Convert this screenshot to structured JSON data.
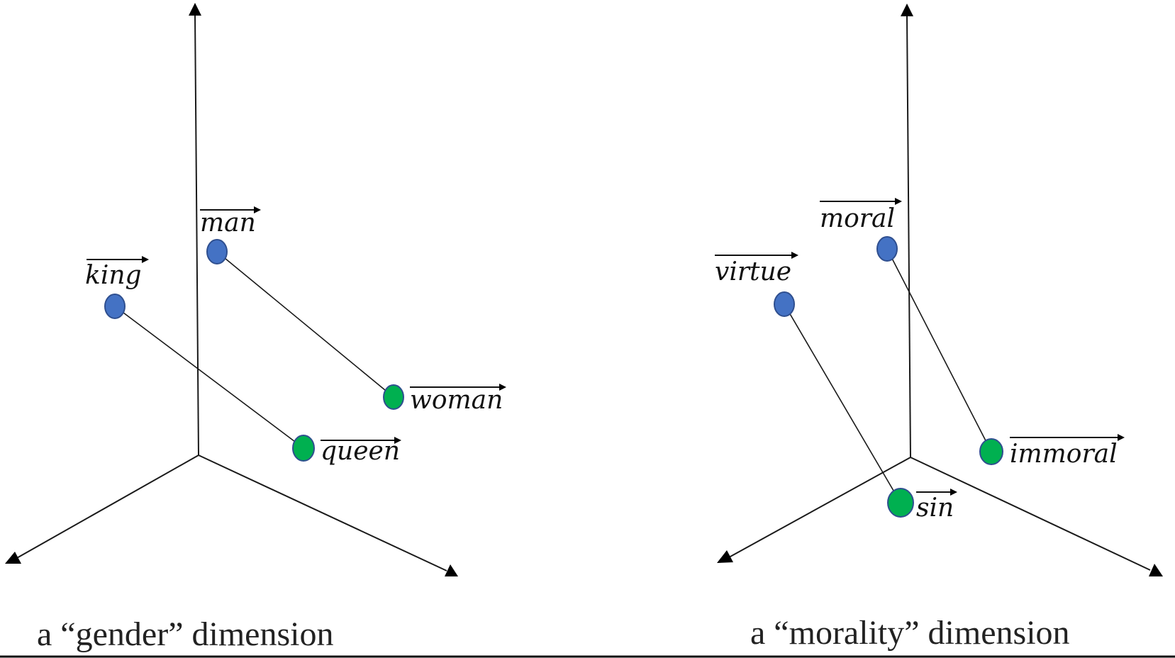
{
  "colors": {
    "positive_point": "#4472C4",
    "negative_point": "#00B050",
    "point_outline": "#2F4F8F",
    "axis": "#1a1a1a"
  },
  "panels": [
    {
      "caption": "a “gender” dimension",
      "pairs": [
        {
          "from": "king",
          "to": "queen"
        },
        {
          "from": "man",
          "to": "woman"
        }
      ]
    },
    {
      "caption": "a “morality” dimension",
      "pairs": [
        {
          "from": "virtue",
          "to": "sin"
        },
        {
          "from": "moral",
          "to": "immoral"
        }
      ]
    }
  ]
}
